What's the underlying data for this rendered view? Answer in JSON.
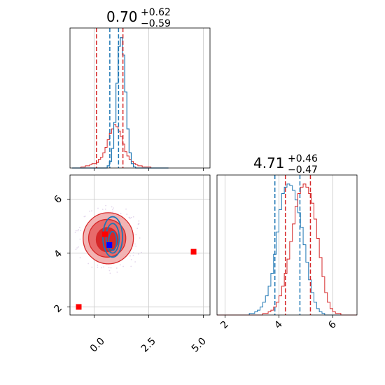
{
  "chart_data": {
    "type": "corner",
    "parameters": [
      {
        "title_value": "0.70",
        "title_plus": "+0.62",
        "title_minus": "−0.59",
        "range": [
          -1.1,
          5.3
        ],
        "ticks": [
          "0.0",
          "2.5",
          "5.0"
        ],
        "tick_values": [
          0.0,
          2.5,
          5.0
        ]
      },
      {
        "title_value": "4.71",
        "title_plus": "+0.46",
        "title_minus": "−0.47",
        "range": [
          1.7,
          6.9
        ],
        "ticks": [
          "2",
          "4",
          "6"
        ],
        "tick_values": [
          2,
          4,
          6
        ]
      }
    ],
    "grid": true,
    "colors": {
      "red": "#d62728",
      "blue": "#1f77b4",
      "red_fill_light": "#f2b3b3",
      "red_fill_mid": "#e86b6b",
      "marker_blue": "#0000ff",
      "marker_red": "#ff0000"
    },
    "hist_x": {
      "bin_width": 0.1,
      "start": -1.0,
      "red": [
        0,
        0,
        0,
        0,
        1,
        1,
        2,
        2,
        3,
        4,
        4,
        5,
        8,
        10,
        14,
        19,
        26,
        32,
        36,
        40,
        38,
        34,
        29,
        22,
        15,
        11,
        8,
        6,
        4,
        3,
        2,
        2,
        1,
        1,
        1,
        1,
        0,
        0,
        0,
        0,
        0,
        0,
        0,
        0
      ],
      "blue": [
        0,
        0,
        0,
        0,
        0,
        0,
        0,
        0,
        0,
        0,
        0,
        0,
        0,
        0,
        0,
        0,
        2,
        6,
        18,
        42,
        78,
        112,
        120,
        104,
        70,
        36,
        14,
        4,
        1,
        0,
        0,
        0,
        0,
        0,
        0,
        0,
        0,
        0,
        0,
        0,
        0,
        0,
        0,
        0
      ],
      "red_lines": [
        0.11,
        1.32
      ],
      "blue_lines": [
        0.72,
        1.12
      ],
      "ymax": 125
    },
    "hist_y": {
      "bin_width": 0.1,
      "start": 1.7,
      "red": [
        0,
        0,
        0,
        0,
        0,
        0,
        0,
        0,
        0,
        0,
        0,
        0,
        0,
        0,
        0,
        0,
        0,
        1,
        1,
        2,
        3,
        5,
        8,
        12,
        18,
        26,
        35,
        46,
        57,
        68,
        76,
        80,
        82,
        80,
        76,
        70,
        60,
        48,
        36,
        24,
        14,
        8,
        4,
        2,
        1,
        1,
        0,
        0,
        0,
        0,
        0,
        0
      ],
      "blue": [
        0,
        0,
        0,
        0,
        0,
        0,
        0,
        0,
        0,
        0,
        0,
        0,
        1,
        1,
        2,
        3,
        5,
        8,
        12,
        18,
        26,
        38,
        52,
        66,
        76,
        80,
        82,
        81,
        78,
        72,
        64,
        55,
        44,
        33,
        22,
        14,
        8,
        4,
        2,
        1,
        0,
        0,
        0,
        0,
        0,
        0,
        0,
        0,
        0,
        0,
        0,
        0
      ],
      "red_lines": [
        4.24,
        5.17
      ],
      "blue_lines": [
        3.85,
        4.78
      ],
      "ymax": 85
    },
    "joint": {
      "red_contours": [
        {
          "cx": 0.65,
          "cy": 4.55,
          "rx": 1.15,
          "ry": 0.95,
          "fill": "#f2b3b3"
        },
        {
          "cx": 0.6,
          "cy": 4.55,
          "rx": 0.85,
          "ry": 0.7,
          "fill": "#e86b6b"
        },
        {
          "cx": 0.6,
          "cy": 4.5,
          "rx": 0.5,
          "ry": 0.45,
          "fill": "#d62728"
        }
      ],
      "blue_contours": [
        {
          "cx": 0.85,
          "cy": 4.6,
          "rx": 0.45,
          "ry": 0.75
        },
        {
          "cx": 0.85,
          "cy": 4.55,
          "rx": 0.3,
          "ry": 0.55
        },
        {
          "cx": 0.85,
          "cy": 4.45,
          "rx": 0.18,
          "ry": 0.35
        }
      ],
      "markers_red": [
        [
          -0.7,
          2.0
        ],
        [
          4.55,
          4.05
        ],
        [
          0.5,
          4.7
        ]
      ],
      "markers_blue": [
        [
          0.7,
          4.3
        ]
      ]
    }
  }
}
